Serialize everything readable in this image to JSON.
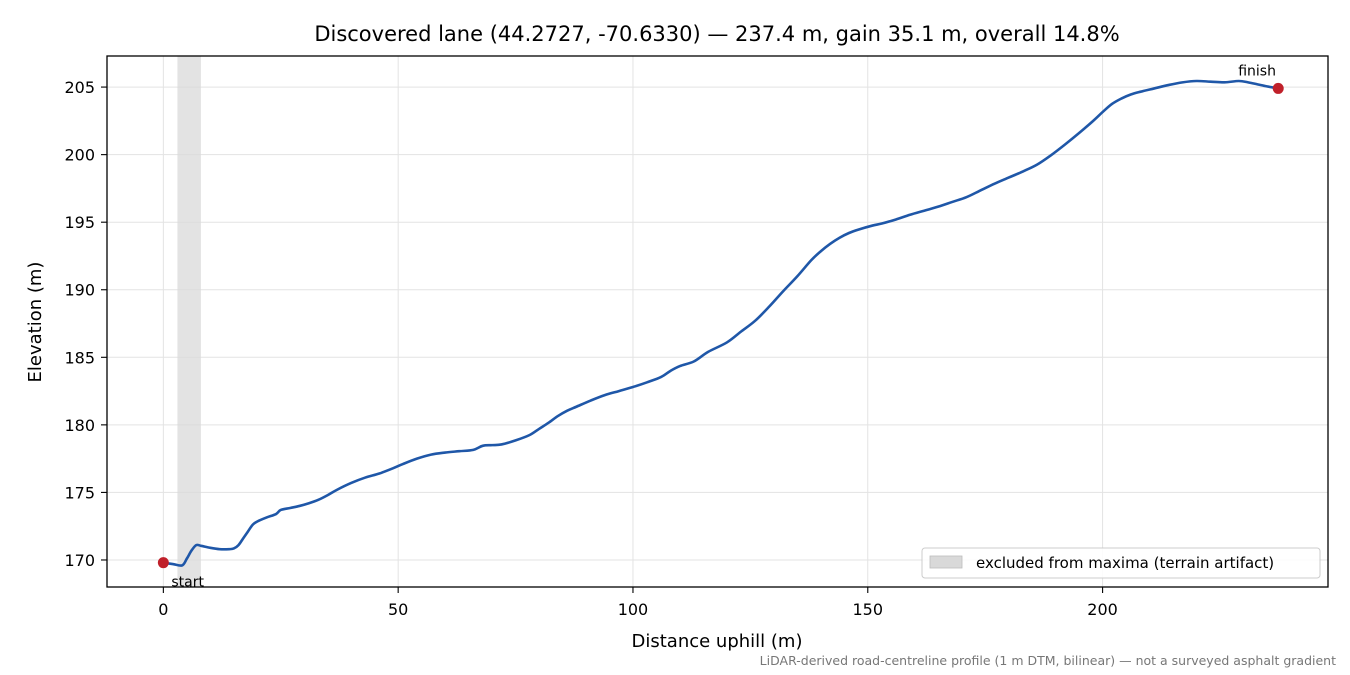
{
  "chart_data": {
    "type": "line",
    "title": "Discovered lane (44.2727, -70.6330) — 237.4 m, gain 35.1 m, overall 14.8%",
    "xlabel": "Distance uphill (m)",
    "ylabel": "Elevation (m)",
    "xlim": [
      -12,
      248
    ],
    "ylim": [
      168.0,
      207.3
    ],
    "x_ticks": [
      0,
      50,
      100,
      150,
      200
    ],
    "y_ticks": [
      170,
      175,
      180,
      185,
      190,
      195,
      200,
      205
    ],
    "grid": true,
    "legend_placement": "lower-right",
    "colors": {
      "line": "#1f57a8",
      "marker": "#c0202a",
      "band": "#d9d9d9"
    },
    "excluded_region": {
      "x": [
        3,
        8
      ],
      "label": "excluded from maxima (terrain artifact)"
    },
    "series": [
      {
        "x": [
          0,
          2,
          4,
          5,
          6,
          7,
          8,
          10,
          12,
          14,
          15,
          16,
          17,
          18,
          19,
          20,
          22,
          24,
          25,
          27,
          29,
          31,
          33,
          35,
          37,
          40,
          43,
          46,
          49,
          51,
          54,
          57,
          60,
          63,
          66,
          68,
          70,
          72,
          75,
          78,
          80,
          82,
          84,
          86,
          88,
          91,
          94,
          97,
          100,
          103,
          106,
          108,
          110,
          113,
          116,
          120,
          123,
          126,
          129,
          132,
          135,
          138,
          140,
          142,
          144,
          146,
          148,
          151,
          153,
          156,
          159,
          162,
          165,
          168,
          171,
          174,
          177,
          180,
          183,
          186,
          189,
          192,
          195,
          198,
          200,
          202,
          204,
          206,
          208,
          211,
          214,
          217,
          220,
          223,
          226,
          229,
          231,
          233,
          235,
          237.4
        ],
        "y": [
          169.8,
          169.7,
          169.6,
          170.1,
          170.7,
          171.1,
          171.05,
          170.9,
          170.8,
          170.8,
          170.85,
          171.1,
          171.6,
          172.1,
          172.6,
          172.85,
          173.15,
          173.4,
          173.7,
          173.85,
          174.0,
          174.2,
          174.45,
          174.8,
          175.2,
          175.7,
          176.1,
          176.4,
          176.8,
          177.1,
          177.5,
          177.8,
          177.95,
          178.05,
          178.15,
          178.45,
          178.5,
          178.55,
          178.85,
          179.25,
          179.7,
          180.15,
          180.65,
          181.05,
          181.35,
          181.8,
          182.2,
          182.5,
          182.8,
          183.15,
          183.55,
          184.0,
          184.35,
          184.7,
          185.4,
          186.1,
          186.9,
          187.7,
          188.75,
          189.9,
          191.0,
          192.2,
          192.85,
          193.4,
          193.85,
          194.2,
          194.45,
          194.75,
          194.9,
          195.2,
          195.55,
          195.85,
          196.15,
          196.5,
          196.85,
          197.35,
          197.85,
          198.3,
          198.75,
          199.25,
          199.95,
          200.75,
          201.6,
          202.5,
          203.15,
          203.75,
          204.15,
          204.45,
          204.65,
          204.9,
          205.15,
          205.35,
          205.45,
          205.4,
          205.35,
          205.45,
          205.35,
          205.2,
          205.05,
          204.9
        ]
      }
    ],
    "annotations": [
      {
        "text": "start",
        "x": 0,
        "y": 169.8
      },
      {
        "text": "finish",
        "x": 237.4,
        "y": 204.9
      }
    ]
  },
  "footnote": "LiDAR-derived road-centreline profile (1 m DTM, bilinear) — not a surveyed asphalt gradient"
}
